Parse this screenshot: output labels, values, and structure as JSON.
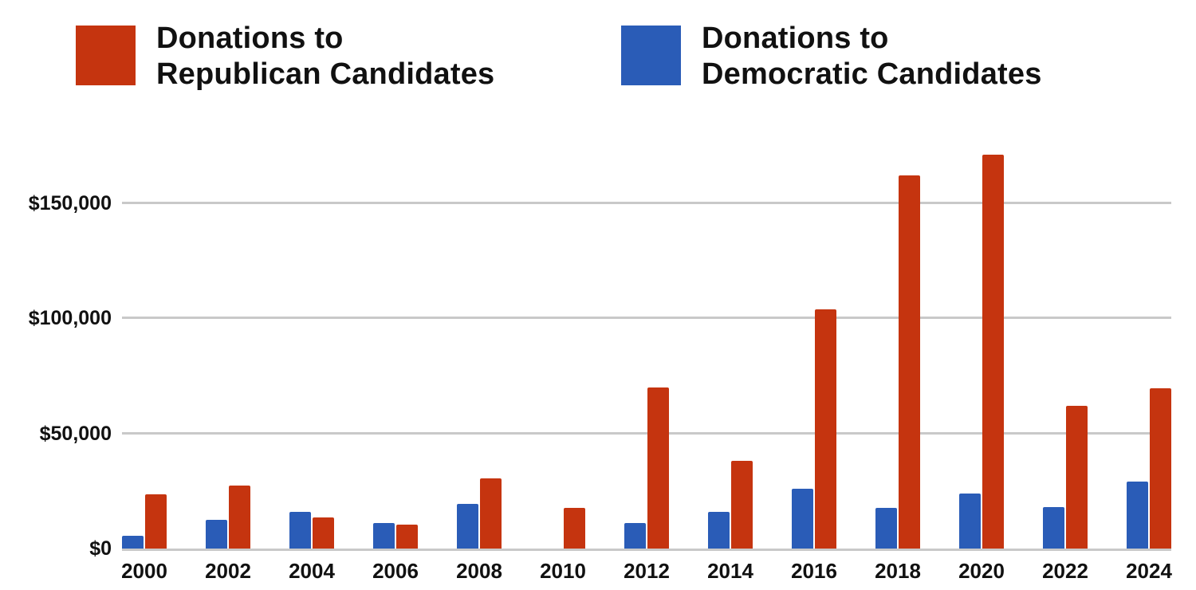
{
  "legend": {
    "items": [
      {
        "key": "republican",
        "line1": "Donations to",
        "line2": "Republican Candidates",
        "color": "#c5340f"
      },
      {
        "key": "democratic",
        "line1": "Donations to",
        "line2": "Democratic Candidates",
        "color": "#2a5cb7"
      }
    ]
  },
  "chart_data": {
    "type": "bar",
    "title": "",
    "xlabel": "",
    "ylabel": "",
    "categories": [
      "2000",
      "2002",
      "2004",
      "2006",
      "2008",
      "2010",
      "2012",
      "2014",
      "2016",
      "2018",
      "2020",
      "2022",
      "2024"
    ],
    "series": [
      {
        "key": "republican",
        "name": "Donations to Republican Candidates",
        "color": "#c5340f",
        "values": [
          23500,
          27500,
          13500,
          10500,
          30500,
          17500,
          70000,
          38000,
          104000,
          162000,
          171000,
          62000,
          69500
        ]
      },
      {
        "key": "democratic",
        "name": "Donations to Democratic Candidates",
        "color": "#2a5cb7",
        "values": [
          5500,
          12500,
          16000,
          11000,
          19500,
          0,
          11000,
          16000,
          26000,
          17500,
          24000,
          18000,
          29000
        ]
      }
    ],
    "group_bar_order": [
      "democratic",
      "republican"
    ],
    "y_ticks": [
      {
        "value": 0,
        "label": "$0"
      },
      {
        "value": 50000,
        "label": "$50,000"
      },
      {
        "value": 100000,
        "label": "$100,000"
      },
      {
        "value": 150000,
        "label": "$150,000"
      }
    ],
    "ylim": [
      0,
      180000
    ],
    "grid": "horizontal",
    "legend_position": "top"
  },
  "colors": {
    "republican": "#c5340f",
    "democratic": "#2a5cb7",
    "gridline": "#c9c9c9",
    "text": "#111111",
    "background": "#ffffff"
  }
}
